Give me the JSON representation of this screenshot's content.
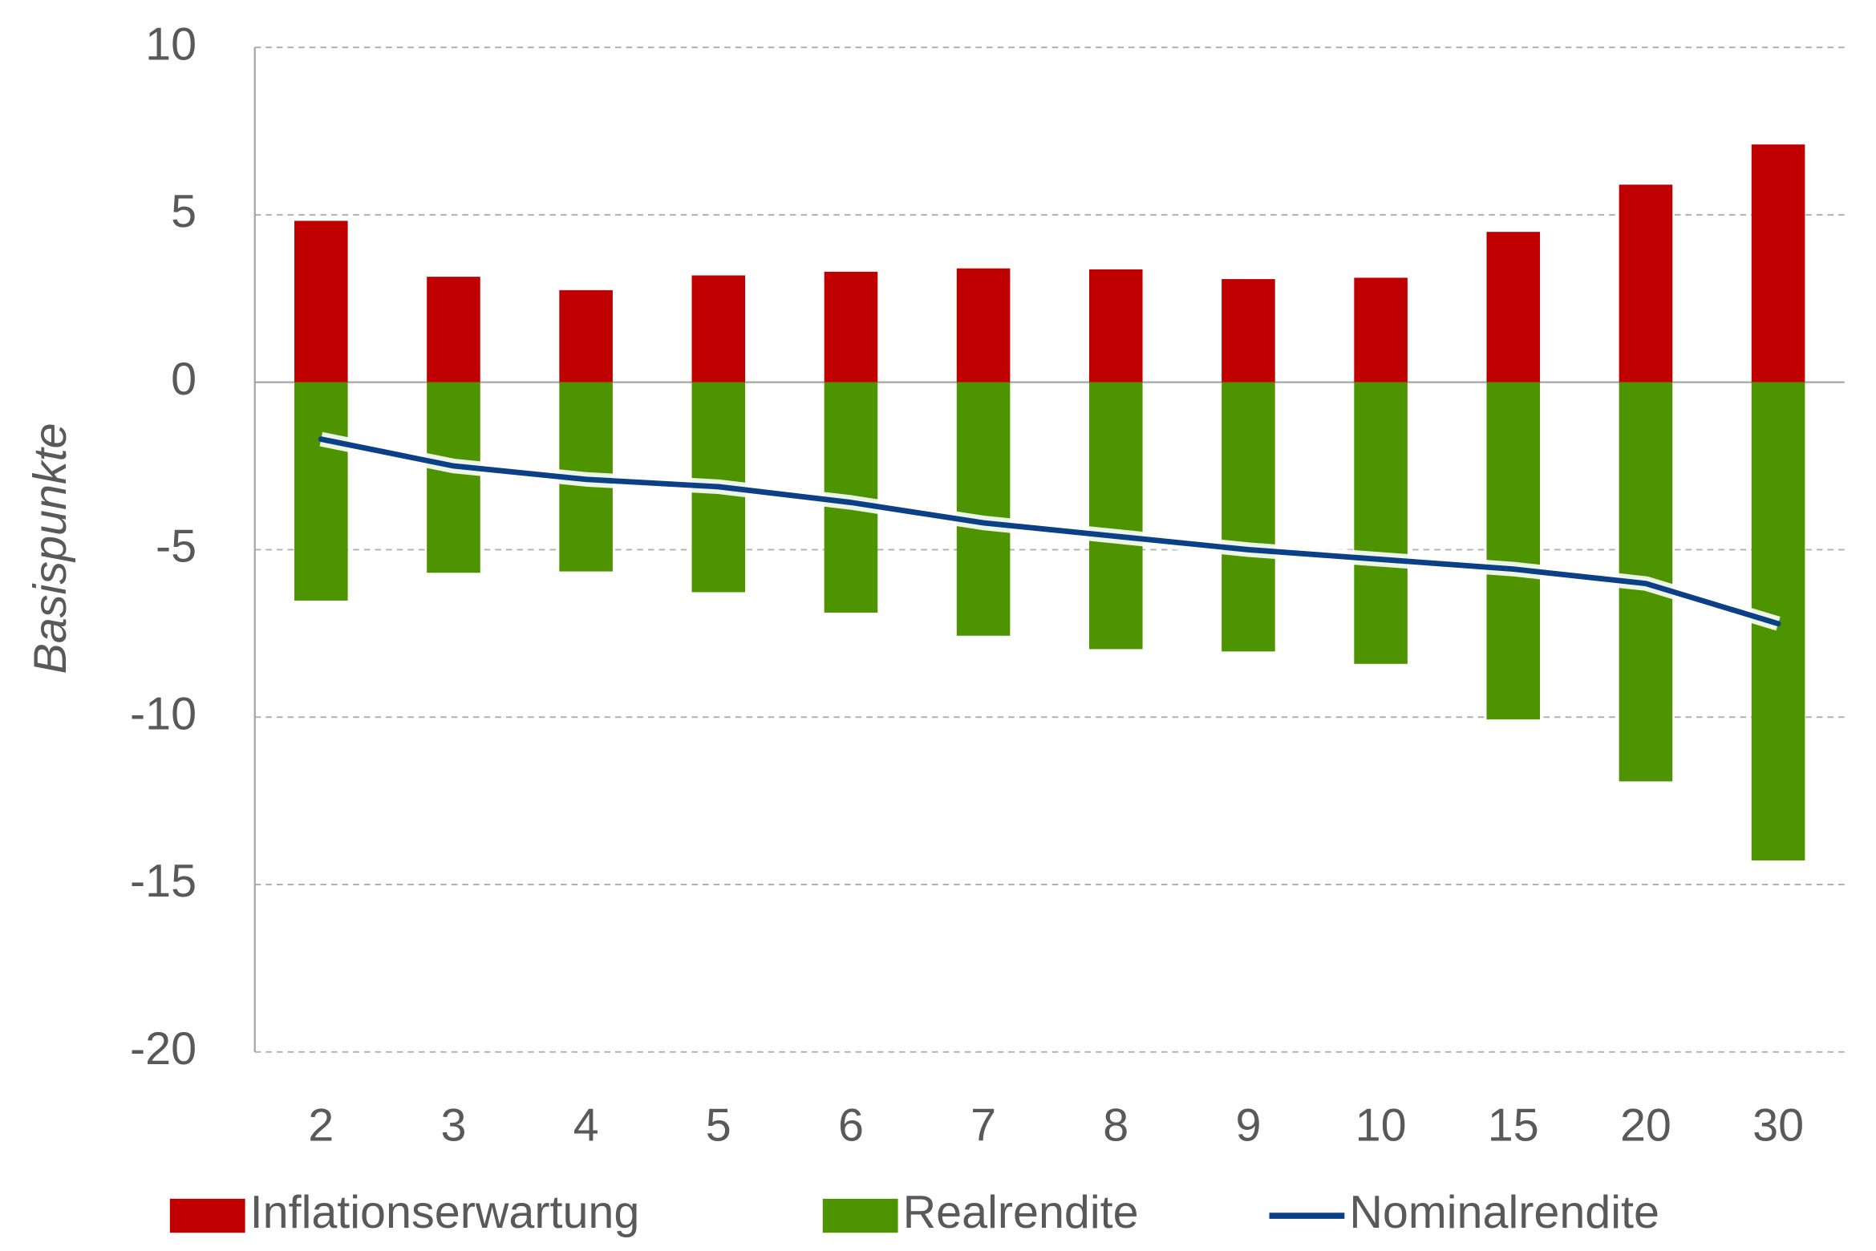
{
  "chart_data": {
    "type": "bar_line",
    "y_label": "Basispunkte",
    "categories": [
      "2",
      "3",
      "4",
      "5",
      "6",
      "7",
      "8",
      "9",
      "10",
      "15",
      "20",
      "30"
    ],
    "series": [
      {
        "name": "Inflationserwartung",
        "type": "bar",
        "color": "#c00000",
        "values": [
          4.82,
          3.15,
          2.75,
          3.19,
          3.3,
          3.4,
          3.37,
          3.08,
          3.12,
          4.49,
          5.9,
          7.1
        ]
      },
      {
        "name": "Realrendite",
        "type": "bar",
        "color": "#4e9400",
        "values": [
          -6.52,
          -5.69,
          -5.65,
          -6.27,
          -6.88,
          -7.57,
          -7.97,
          -8.04,
          -8.41,
          -10.07,
          -11.92,
          -14.28
        ]
      },
      {
        "name": "Nominalrendite",
        "type": "line",
        "color": "#0b3f86",
        "values": [
          -1.7,
          -2.5,
          -2.9,
          -3.12,
          -3.59,
          -4.2,
          -4.6,
          -5.0,
          -5.29,
          -5.58,
          -6.01,
          -7.21
        ]
      }
    ],
    "ylim": [
      -20,
      10
    ],
    "yticks": [
      -20,
      -15,
      -10,
      -5,
      0,
      5,
      10
    ],
    "grid": true
  }
}
